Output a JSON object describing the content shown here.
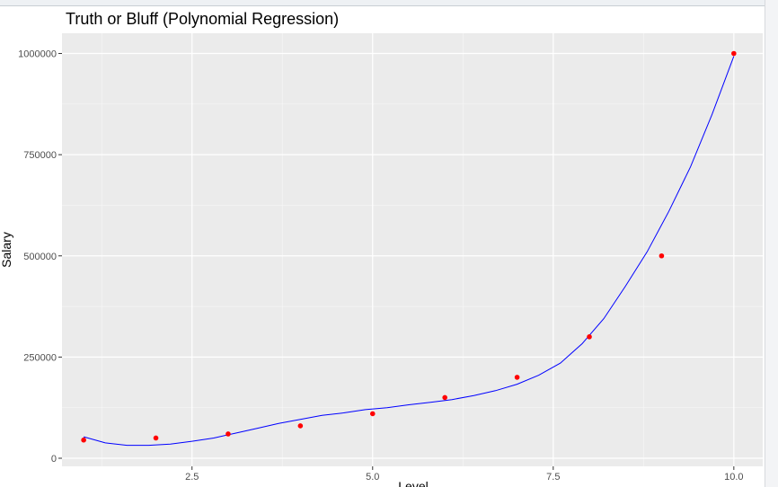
{
  "chart_data": {
    "type": "scatter",
    "title": "Truth or Bluff (Polynomial Regression)",
    "xlabel": "Level",
    "ylabel": "Salary",
    "xlim": [
      0.7,
      10.4
    ],
    "ylim": [
      -20000,
      1050000
    ],
    "x_ticks": [
      2.5,
      5.0,
      7.5,
      10.0
    ],
    "x_tick_labels": [
      "2.5",
      "5.0",
      "7.5",
      "10.0"
    ],
    "y_ticks": [
      0,
      250000,
      500000,
      750000,
      1000000
    ],
    "y_tick_labels": [
      "0",
      "250000",
      "500000",
      "750000",
      "1000000"
    ],
    "grid": true,
    "legend": "none",
    "series": [
      {
        "kind": "points",
        "color": "#ff0000",
        "x": [
          1,
          2,
          3,
          4,
          5,
          6,
          7,
          8,
          9,
          10
        ],
        "y": [
          45000,
          50000,
          60000,
          80000,
          110000,
          150000,
          200000,
          300000,
          500000,
          1000000
        ]
      },
      {
        "kind": "line",
        "color": "#0000ff",
        "x": [
          1.0,
          1.3,
          1.6,
          1.9,
          2.2,
          2.5,
          2.8,
          3.1,
          3.4,
          3.7,
          4.0,
          4.3,
          4.6,
          4.9,
          5.2,
          5.5,
          5.8,
          6.1,
          6.4,
          6.7,
          7.0,
          7.3,
          7.6,
          7.9,
          8.2,
          8.5,
          8.8,
          9.1,
          9.4,
          9.7,
          10.0
        ],
        "y": [
          53000,
          38000,
          32000,
          32000,
          35000,
          42000,
          50000,
          62000,
          74000,
          86000,
          96000,
          106000,
          112000,
          120000,
          125000,
          132000,
          138000,
          145000,
          155000,
          167000,
          183000,
          205000,
          235000,
          283000,
          345000,
          425000,
          510000,
          610000,
          720000,
          850000,
          993000
        ]
      }
    ]
  }
}
